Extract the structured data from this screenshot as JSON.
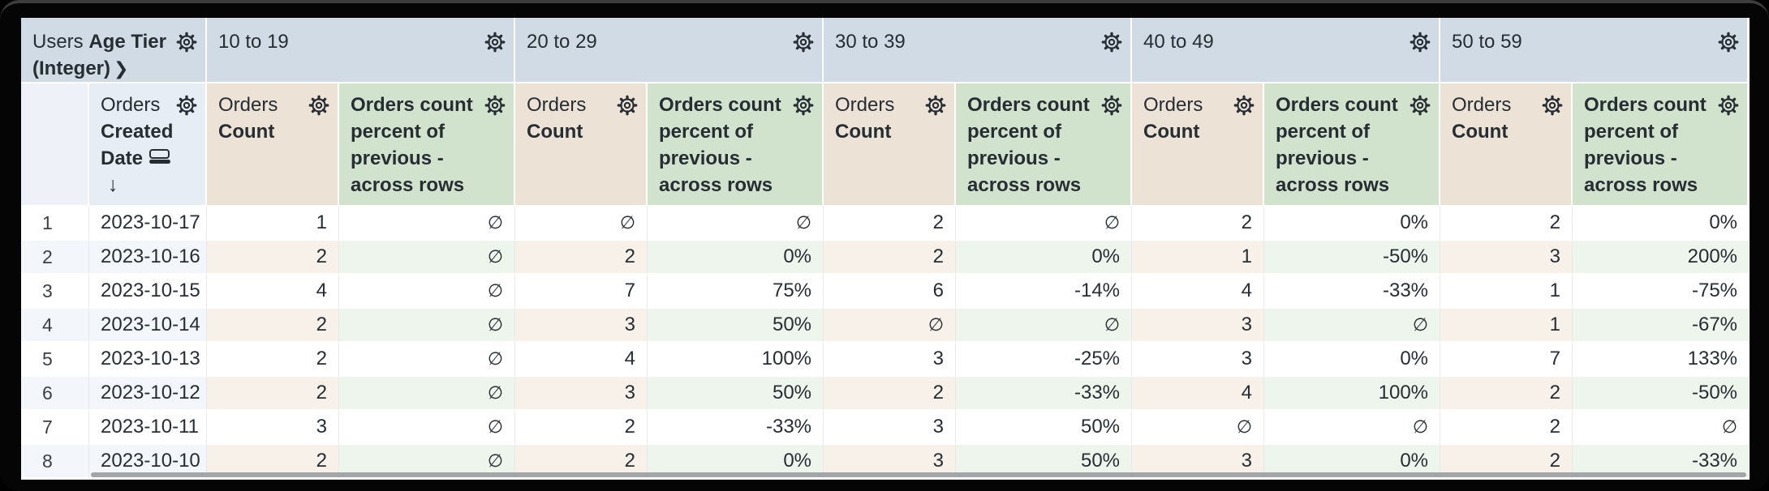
{
  "table": {
    "pivot": {
      "corner": {
        "view": "Users",
        "field": "Age Tier",
        "suffix": "(Integer)"
      },
      "tiers": [
        "10 to 19",
        "20 to 29",
        "30 to 39",
        "40 to 49",
        "50 to 59"
      ]
    },
    "row_dimension": {
      "view": "Orders",
      "field": "Created Date"
    },
    "measures": {
      "count": {
        "view": "Orders",
        "field": "Count"
      },
      "percent": {
        "label": "Orders count percent of previous - across rows"
      }
    },
    "null_symbol": "∅",
    "rows": [
      {
        "index": "1",
        "date": "2023-10-17",
        "cells": [
          "1",
          "∅",
          "∅",
          "∅",
          "2",
          "∅",
          "2",
          "0%",
          "2",
          "0%"
        ]
      },
      {
        "index": "2",
        "date": "2023-10-16",
        "cells": [
          "2",
          "∅",
          "2",
          "0%",
          "2",
          "0%",
          "1",
          "-50%",
          "3",
          "200%"
        ]
      },
      {
        "index": "3",
        "date": "2023-10-15",
        "cells": [
          "4",
          "∅",
          "7",
          "75%",
          "6",
          "-14%",
          "4",
          "-33%",
          "1",
          "-75%"
        ]
      },
      {
        "index": "4",
        "date": "2023-10-14",
        "cells": [
          "2",
          "∅",
          "3",
          "50%",
          "∅",
          "∅",
          "3",
          "∅",
          "1",
          "-67%"
        ]
      },
      {
        "index": "5",
        "date": "2023-10-13",
        "cells": [
          "2",
          "∅",
          "4",
          "100%",
          "3",
          "-25%",
          "3",
          "0%",
          "7",
          "133%"
        ]
      },
      {
        "index": "6",
        "date": "2023-10-12",
        "cells": [
          "2",
          "∅",
          "3",
          "50%",
          "2",
          "-33%",
          "4",
          "100%",
          "2",
          "-50%"
        ]
      },
      {
        "index": "7",
        "date": "2023-10-11",
        "cells": [
          "3",
          "∅",
          "2",
          "-33%",
          "3",
          "50%",
          "∅",
          "∅",
          "2",
          "∅"
        ]
      },
      {
        "index": "8",
        "date": "2023-10-10",
        "cells": [
          "2",
          "∅",
          "2",
          "0%",
          "3",
          "50%",
          "3",
          "0%",
          "2",
          "-33%"
        ]
      }
    ]
  },
  "icons": {
    "expand_chevron": "❯",
    "sort_descending_arrow": "↓",
    "gear": "settings-gear",
    "group_bars": "group-bars"
  },
  "colors": {
    "pivot_header_bg": "#d0dbe5",
    "dimension_header_bg": "#e7edf4",
    "row_number_header_bg": "#eef2f8",
    "count_header_bg": "#ede2d6",
    "percent_header_bg": "#d2e3cd",
    "alt_row_dimension_bg": "#f3f6fa",
    "alt_row_count_bg": "#f8f1ea",
    "alt_row_percent_bg": "#eef5ec",
    "text": "#262d33",
    "frame": "#050505"
  }
}
